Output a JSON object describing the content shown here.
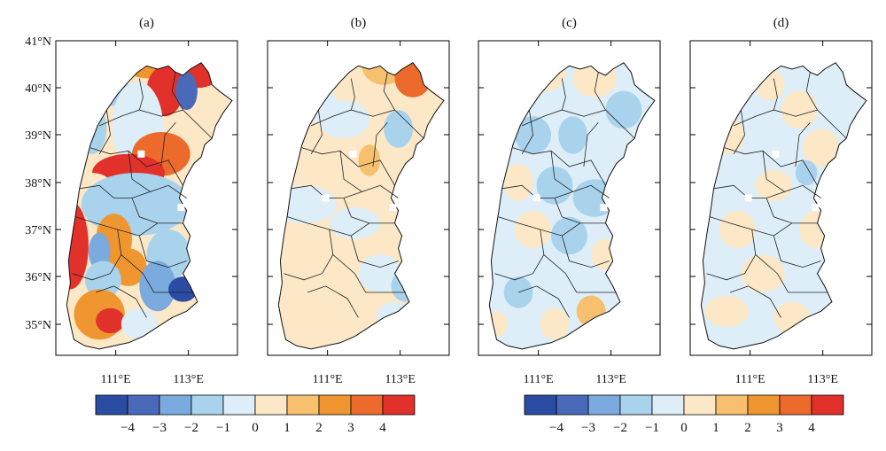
{
  "panels": [
    {
      "label": "(a)",
      "field": "a"
    },
    {
      "label": "(b)",
      "field": "b"
    },
    {
      "label": "(c)",
      "field": "c"
    },
    {
      "label": "(d)",
      "field": "d"
    }
  ],
  "lat_ticks": [
    "41°N",
    "40°N",
    "39°N",
    "38°N",
    "37°N",
    "36°N",
    "35°N"
  ],
  "lon_ticks": [
    "111°E",
    "113°E"
  ],
  "colorbar": {
    "colors": [
      "#2b4ca3",
      "#4a69b9",
      "#7aaade",
      "#a9d3ec",
      "#ddeef8",
      "#fce8c6",
      "#f6c06e",
      "#ef9630",
      "#eb6a2c",
      "#e2302a"
    ],
    "tick_labels": [
      "−4",
      "−3",
      "−2",
      "−1",
      "0",
      "1",
      "2",
      "3",
      "4"
    ]
  },
  "fields": {
    "a": {
      "base": 5,
      "blobs": [
        [
          0.3,
          0.04,
          0.2,
          0.07,
          8
        ],
        [
          0.52,
          0.06,
          0.18,
          0.06,
          7
        ],
        [
          0.78,
          0.09,
          0.14,
          0.06,
          9
        ],
        [
          0.2,
          0.11,
          0.08,
          0.05,
          2
        ],
        [
          0.28,
          0.15,
          0.12,
          0.06,
          3
        ],
        [
          0.6,
          0.16,
          0.1,
          0.08,
          9
        ],
        [
          0.72,
          0.16,
          0.06,
          0.06,
          1
        ],
        [
          0.2,
          0.28,
          0.08,
          0.08,
          3
        ],
        [
          0.45,
          0.27,
          0.14,
          0.14,
          4
        ],
        [
          0.58,
          0.36,
          0.16,
          0.07,
          8
        ],
        [
          0.4,
          0.42,
          0.2,
          0.06,
          9
        ],
        [
          0.12,
          0.52,
          0.08,
          0.04,
          3
        ],
        [
          0.2,
          0.52,
          0.16,
          0.1,
          5
        ],
        [
          0.44,
          0.52,
          0.3,
          0.1,
          3
        ],
        [
          0.08,
          0.65,
          0.1,
          0.14,
          9
        ],
        [
          0.32,
          0.63,
          0.1,
          0.08,
          7
        ],
        [
          0.24,
          0.67,
          0.06,
          0.06,
          2
        ],
        [
          0.4,
          0.72,
          0.1,
          0.06,
          7
        ],
        [
          0.62,
          0.68,
          0.12,
          0.08,
          3
        ],
        [
          0.26,
          0.76,
          0.1,
          0.06,
          3
        ],
        [
          0.56,
          0.78,
          0.1,
          0.08,
          2
        ],
        [
          0.7,
          0.79,
          0.08,
          0.04,
          0
        ],
        [
          0.24,
          0.87,
          0.14,
          0.08,
          7
        ],
        [
          0.3,
          0.89,
          0.08,
          0.04,
          9
        ],
        [
          0.46,
          0.9,
          0.1,
          0.05,
          4
        ]
      ]
    },
    "b": {
      "base": 5,
      "blobs": [
        [
          0.36,
          0.06,
          0.08,
          0.05,
          7
        ],
        [
          0.64,
          0.08,
          0.12,
          0.06,
          6
        ],
        [
          0.8,
          0.12,
          0.1,
          0.06,
          8
        ],
        [
          0.28,
          0.2,
          0.1,
          0.06,
          4
        ],
        [
          0.42,
          0.25,
          0.14,
          0.06,
          4
        ],
        [
          0.72,
          0.28,
          0.08,
          0.06,
          3
        ],
        [
          0.2,
          0.52,
          0.18,
          0.06,
          4
        ],
        [
          0.48,
          0.58,
          0.14,
          0.05,
          4
        ],
        [
          0.56,
          0.38,
          0.06,
          0.05,
          6
        ],
        [
          0.62,
          0.74,
          0.12,
          0.06,
          4
        ],
        [
          0.76,
          0.78,
          0.08,
          0.05,
          3
        ],
        [
          0.7,
          0.88,
          0.1,
          0.05,
          4
        ]
      ]
    },
    "c": {
      "base": 4,
      "blobs": [
        [
          0.38,
          0.1,
          0.1,
          0.06,
          5
        ],
        [
          0.64,
          0.12,
          0.12,
          0.06,
          5
        ],
        [
          0.8,
          0.22,
          0.1,
          0.06,
          3
        ],
        [
          0.3,
          0.3,
          0.1,
          0.06,
          3
        ],
        [
          0.52,
          0.3,
          0.08,
          0.06,
          3
        ],
        [
          0.22,
          0.45,
          0.08,
          0.06,
          5
        ],
        [
          0.42,
          0.46,
          0.1,
          0.06,
          3
        ],
        [
          0.64,
          0.5,
          0.12,
          0.06,
          3
        ],
        [
          0.3,
          0.6,
          0.1,
          0.06,
          5
        ],
        [
          0.5,
          0.62,
          0.1,
          0.06,
          3
        ],
        [
          0.22,
          0.8,
          0.08,
          0.05,
          3
        ],
        [
          0.62,
          0.86,
          0.08,
          0.05,
          6
        ],
        [
          0.1,
          0.9,
          0.06,
          0.04,
          5
        ],
        [
          0.42,
          0.9,
          0.08,
          0.05,
          5
        ],
        [
          0.7,
          0.68,
          0.08,
          0.05,
          5
        ]
      ]
    },
    "d": {
      "base": 4,
      "blobs": [
        [
          0.44,
          0.14,
          0.08,
          0.05,
          5
        ],
        [
          0.6,
          0.22,
          0.1,
          0.06,
          5
        ],
        [
          0.2,
          0.3,
          0.1,
          0.06,
          5
        ],
        [
          0.72,
          0.34,
          0.1,
          0.06,
          5
        ],
        [
          0.46,
          0.46,
          0.1,
          0.05,
          5
        ],
        [
          0.26,
          0.6,
          0.1,
          0.06,
          5
        ],
        [
          0.7,
          0.6,
          0.1,
          0.06,
          5
        ],
        [
          0.4,
          0.74,
          0.12,
          0.06,
          5
        ],
        [
          0.2,
          0.86,
          0.12,
          0.05,
          5
        ],
        [
          0.56,
          0.88,
          0.1,
          0.05,
          5
        ],
        [
          0.64,
          0.42,
          0.06,
          0.04,
          3
        ]
      ]
    }
  }
}
